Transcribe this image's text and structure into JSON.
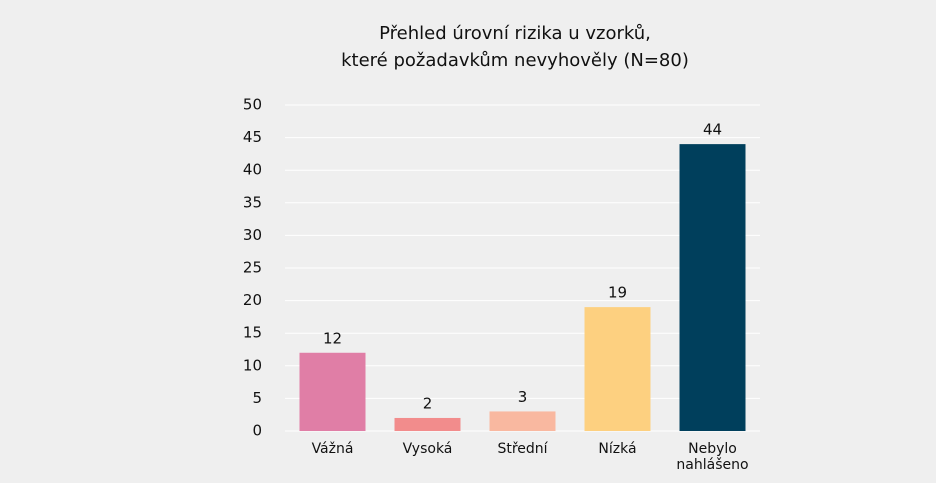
{
  "chart_data": {
    "type": "bar",
    "title": "Přehled úrovní rizika u vzorků,\nkteré požadavkům nevyhověly (N=80)",
    "categories": [
      "Vážná",
      "Vysoká",
      "Střední",
      "Nízká",
      "Nebylo\nnahlášeno"
    ],
    "values": [
      12,
      2,
      3,
      19,
      44
    ],
    "colors": [
      "#e07ea6",
      "#f28c8c",
      "#f9b8a0",
      "#fdd080",
      "#003f5c"
    ],
    "ylim": [
      0,
      50
    ],
    "yticks": [
      0,
      5,
      10,
      15,
      20,
      25,
      30,
      35,
      40,
      45,
      50
    ],
    "grid": true
  }
}
